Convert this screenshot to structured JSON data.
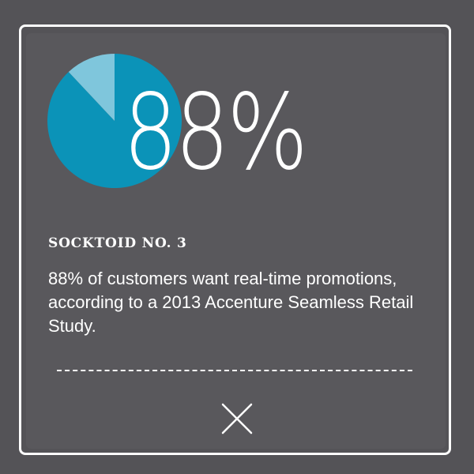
{
  "stat": {
    "value_text": "88%",
    "percent": 88
  },
  "pie": {
    "slices": [
      {
        "label": "customers who want real-time promotions",
        "value": 88,
        "color": "#0b93b8"
      },
      {
        "label": "remainder",
        "value": 12,
        "color": "#7fc6dc"
      }
    ]
  },
  "socktoid": {
    "kicker": "SOCKTOID NO. 3",
    "body": "88% of customers want real-time promotions, according to a 2013 Accenture Seamless Retail Study."
  },
  "close": {
    "icon": "close-icon"
  },
  "colors": {
    "background": "#545357",
    "card": "#59585c",
    "border": "#ffffff",
    "text": "#ffffff",
    "pie_primary": "#0b93b8",
    "pie_secondary": "#7fc6dc"
  }
}
